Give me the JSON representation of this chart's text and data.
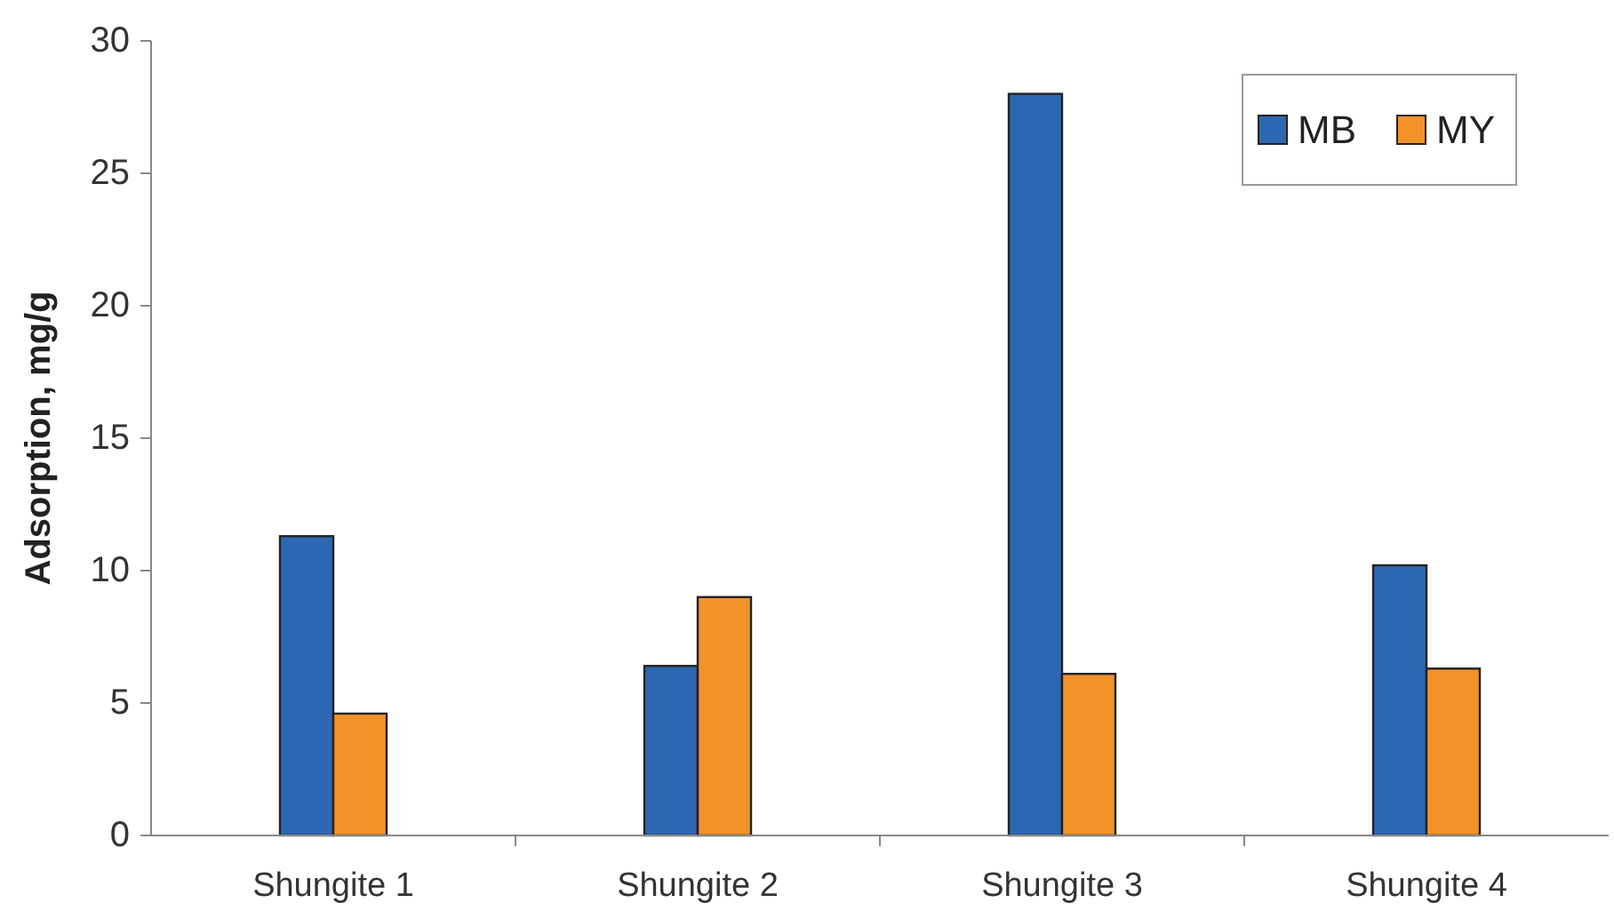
{
  "chart_data": {
    "type": "bar",
    "ylabel": "Adsorption, mg/g",
    "categories": [
      "Shungite 1",
      "Shungite 2",
      "Shungite 3",
      "Shungite 4"
    ],
    "series": [
      {
        "name": "MB",
        "color": "#2e67b1",
        "values": [
          11.3,
          6.4,
          28.0,
          10.2
        ]
      },
      {
        "name": "MY",
        "color": "#f39228",
        "values": [
          4.6,
          9.0,
          6.1,
          6.3
        ]
      }
    ],
    "ylim": [
      0,
      30
    ],
    "yticks": [
      0,
      5,
      10,
      15,
      20,
      25,
      30
    ],
    "grid": false,
    "legend": "top right"
  }
}
